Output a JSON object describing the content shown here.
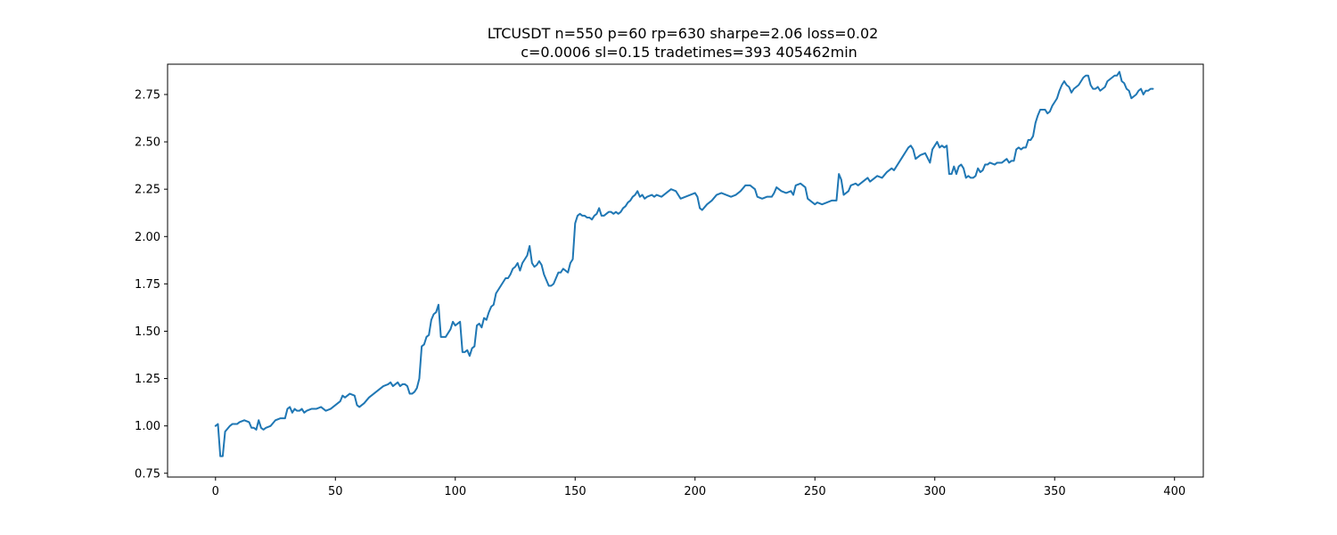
{
  "chart_data": {
    "type": "line",
    "title": "LTCUSDT n=550 p=60 rp=630 sharpe=2.06 loss=0.02",
    "subtitle": "c=0.0006 sl=0.15 tradetimes=393  405462min",
    "xlabel": "",
    "ylabel": "",
    "xlim": [
      -20,
      412
    ],
    "ylim": [
      0.73,
      2.91
    ],
    "xticks": [
      0,
      50,
      100,
      150,
      200,
      250,
      300,
      350,
      400
    ],
    "xtick_labels": [
      "0",
      "50",
      "100",
      "150",
      "200",
      "250",
      "300",
      "350",
      "400"
    ],
    "yticks": [
      0.75,
      1.0,
      1.25,
      1.5,
      1.75,
      2.0,
      2.25,
      2.5,
      2.75
    ],
    "ytick_labels": [
      "0.75",
      "1.00",
      "1.25",
      "1.50",
      "1.75",
      "2.00",
      "2.25",
      "2.50",
      "2.75"
    ],
    "grid": false,
    "line_color": "#1f77b4",
    "series": [
      {
        "values": [
          [
            0,
            1.0
          ],
          [
            1,
            1.01
          ],
          [
            2,
            0.84
          ],
          [
            3,
            0.84
          ],
          [
            4,
            0.97
          ],
          [
            6,
            1.0
          ],
          [
            7,
            1.01
          ],
          [
            9,
            1.01
          ],
          [
            10,
            1.02
          ],
          [
            12,
            1.03
          ],
          [
            14,
            1.02
          ],
          [
            15,
            0.99
          ],
          [
            16,
            0.99
          ],
          [
            17,
            0.98
          ],
          [
            18,
            1.03
          ],
          [
            19,
            0.99
          ],
          [
            20,
            0.98
          ],
          [
            21,
            0.99
          ],
          [
            23,
            1.0
          ],
          [
            25,
            1.03
          ],
          [
            27,
            1.04
          ],
          [
            29,
            1.04
          ],
          [
            30,
            1.09
          ],
          [
            31,
            1.1
          ],
          [
            32,
            1.07
          ],
          [
            33,
            1.09
          ],
          [
            34,
            1.08
          ],
          [
            35,
            1.08
          ],
          [
            36,
            1.09
          ],
          [
            37,
            1.07
          ],
          [
            38,
            1.08
          ],
          [
            40,
            1.09
          ],
          [
            42,
            1.09
          ],
          [
            44,
            1.1
          ],
          [
            46,
            1.08
          ],
          [
            48,
            1.09
          ],
          [
            50,
            1.11
          ],
          [
            52,
            1.13
          ],
          [
            53,
            1.16
          ],
          [
            54,
            1.15
          ],
          [
            56,
            1.17
          ],
          [
            58,
            1.16
          ],
          [
            59,
            1.11
          ],
          [
            60,
            1.1
          ],
          [
            62,
            1.12
          ],
          [
            64,
            1.15
          ],
          [
            66,
            1.17
          ],
          [
            68,
            1.19
          ],
          [
            70,
            1.21
          ],
          [
            72,
            1.22
          ],
          [
            73,
            1.23
          ],
          [
            74,
            1.21
          ],
          [
            75,
            1.22
          ],
          [
            76,
            1.23
          ],
          [
            77,
            1.21
          ],
          [
            78,
            1.22
          ],
          [
            79,
            1.22
          ],
          [
            80,
            1.21
          ],
          [
            81,
            1.17
          ],
          [
            82,
            1.17
          ],
          [
            83,
            1.18
          ],
          [
            84,
            1.2
          ],
          [
            85,
            1.25
          ],
          [
            86,
            1.42
          ],
          [
            87,
            1.43
          ],
          [
            88,
            1.47
          ],
          [
            89,
            1.48
          ],
          [
            90,
            1.56
          ],
          [
            91,
            1.59
          ],
          [
            92,
            1.6
          ],
          [
            93,
            1.64
          ],
          [
            94,
            1.47
          ],
          [
            95,
            1.47
          ],
          [
            96,
            1.47
          ],
          [
            97,
            1.49
          ],
          [
            98,
            1.51
          ],
          [
            99,
            1.55
          ],
          [
            100,
            1.53
          ],
          [
            101,
            1.54
          ],
          [
            102,
            1.55
          ],
          [
            103,
            1.39
          ],
          [
            104,
            1.39
          ],
          [
            105,
            1.4
          ],
          [
            106,
            1.37
          ],
          [
            107,
            1.41
          ],
          [
            108,
            1.42
          ],
          [
            109,
            1.53
          ],
          [
            110,
            1.54
          ],
          [
            111,
            1.52
          ],
          [
            112,
            1.57
          ],
          [
            113,
            1.56
          ],
          [
            114,
            1.6
          ],
          [
            115,
            1.63
          ],
          [
            116,
            1.64
          ],
          [
            117,
            1.7
          ],
          [
            118,
            1.72
          ],
          [
            119,
            1.74
          ],
          [
            120,
            1.76
          ],
          [
            121,
            1.78
          ],
          [
            122,
            1.78
          ],
          [
            123,
            1.8
          ],
          [
            124,
            1.83
          ],
          [
            125,
            1.84
          ],
          [
            126,
            1.86
          ],
          [
            127,
            1.82
          ],
          [
            128,
            1.86
          ],
          [
            129,
            1.88
          ],
          [
            130,
            1.9
          ],
          [
            131,
            1.95
          ],
          [
            132,
            1.86
          ],
          [
            133,
            1.84
          ],
          [
            134,
            1.85
          ],
          [
            135,
            1.87
          ],
          [
            136,
            1.85
          ],
          [
            137,
            1.8
          ],
          [
            138,
            1.77
          ],
          [
            139,
            1.74
          ],
          [
            140,
            1.74
          ],
          [
            141,
            1.75
          ],
          [
            142,
            1.78
          ],
          [
            143,
            1.81
          ],
          [
            144,
            1.81
          ],
          [
            145,
            1.83
          ],
          [
            146,
            1.82
          ],
          [
            147,
            1.81
          ],
          [
            148,
            1.86
          ],
          [
            149,
            1.88
          ],
          [
            150,
            2.07
          ],
          [
            151,
            2.11
          ],
          [
            152,
            2.12
          ],
          [
            153,
            2.11
          ],
          [
            154,
            2.11
          ],
          [
            155,
            2.1
          ],
          [
            156,
            2.1
          ],
          [
            157,
            2.09
          ],
          [
            158,
            2.11
          ],
          [
            159,
            2.12
          ],
          [
            160,
            2.15
          ],
          [
            161,
            2.11
          ],
          [
            162,
            2.11
          ],
          [
            163,
            2.12
          ],
          [
            164,
            2.13
          ],
          [
            165,
            2.13
          ],
          [
            166,
            2.12
          ],
          [
            167,
            2.13
          ],
          [
            168,
            2.12
          ],
          [
            169,
            2.13
          ],
          [
            170,
            2.15
          ],
          [
            171,
            2.16
          ],
          [
            172,
            2.18
          ],
          [
            173,
            2.19
          ],
          [
            174,
            2.21
          ],
          [
            175,
            2.22
          ],
          [
            176,
            2.24
          ],
          [
            177,
            2.21
          ],
          [
            178,
            2.22
          ],
          [
            179,
            2.2
          ],
          [
            180,
            2.21
          ],
          [
            182,
            2.22
          ],
          [
            183,
            2.21
          ],
          [
            184,
            2.22
          ],
          [
            186,
            2.21
          ],
          [
            188,
            2.23
          ],
          [
            190,
            2.25
          ],
          [
            192,
            2.24
          ],
          [
            193,
            2.22
          ],
          [
            194,
            2.2
          ],
          [
            196,
            2.21
          ],
          [
            198,
            2.22
          ],
          [
            200,
            2.23
          ],
          [
            201,
            2.21
          ],
          [
            202,
            2.15
          ],
          [
            203,
            2.14
          ],
          [
            205,
            2.17
          ],
          [
            207,
            2.19
          ],
          [
            209,
            2.22
          ],
          [
            211,
            2.23
          ],
          [
            213,
            2.22
          ],
          [
            215,
            2.21
          ],
          [
            217,
            2.22
          ],
          [
            219,
            2.24
          ],
          [
            221,
            2.27
          ],
          [
            223,
            2.27
          ],
          [
            225,
            2.25
          ],
          [
            226,
            2.21
          ],
          [
            228,
            2.2
          ],
          [
            230,
            2.21
          ],
          [
            232,
            2.21
          ],
          [
            233,
            2.23
          ],
          [
            234,
            2.26
          ],
          [
            236,
            2.24
          ],
          [
            238,
            2.23
          ],
          [
            240,
            2.24
          ],
          [
            241,
            2.22
          ],
          [
            242,
            2.27
          ],
          [
            244,
            2.28
          ],
          [
            246,
            2.26
          ],
          [
            247,
            2.2
          ],
          [
            248,
            2.19
          ],
          [
            249,
            2.18
          ],
          [
            250,
            2.17
          ],
          [
            251,
            2.18
          ],
          [
            253,
            2.17
          ],
          [
            255,
            2.18
          ],
          [
            257,
            2.19
          ],
          [
            259,
            2.19
          ],
          [
            260,
            2.33
          ],
          [
            261,
            2.3
          ],
          [
            262,
            2.22
          ],
          [
            263,
            2.23
          ],
          [
            264,
            2.24
          ],
          [
            265,
            2.27
          ],
          [
            267,
            2.28
          ],
          [
            268,
            2.27
          ],
          [
            270,
            2.29
          ],
          [
            272,
            2.31
          ],
          [
            273,
            2.29
          ],
          [
            274,
            2.3
          ],
          [
            276,
            2.32
          ],
          [
            278,
            2.31
          ],
          [
            280,
            2.34
          ],
          [
            282,
            2.36
          ],
          [
            283,
            2.35
          ],
          [
            285,
            2.39
          ],
          [
            287,
            2.43
          ],
          [
            289,
            2.47
          ],
          [
            290,
            2.48
          ],
          [
            291,
            2.46
          ],
          [
            292,
            2.41
          ],
          [
            294,
            2.43
          ],
          [
            296,
            2.44
          ],
          [
            298,
            2.39
          ],
          [
            299,
            2.46
          ],
          [
            300,
            2.48
          ],
          [
            301,
            2.5
          ],
          [
            302,
            2.47
          ],
          [
            303,
            2.48
          ],
          [
            304,
            2.47
          ],
          [
            305,
            2.48
          ],
          [
            306,
            2.33
          ],
          [
            307,
            2.33
          ],
          [
            308,
            2.37
          ],
          [
            309,
            2.33
          ],
          [
            310,
            2.37
          ],
          [
            311,
            2.38
          ],
          [
            312,
            2.36
          ],
          [
            313,
            2.31
          ],
          [
            314,
            2.32
          ],
          [
            315,
            2.31
          ],
          [
            316,
            2.31
          ],
          [
            317,
            2.32
          ],
          [
            318,
            2.36
          ],
          [
            319,
            2.34
          ],
          [
            320,
            2.35
          ],
          [
            321,
            2.38
          ],
          [
            322,
            2.38
          ],
          [
            323,
            2.39
          ],
          [
            325,
            2.38
          ],
          [
            326,
            2.39
          ],
          [
            327,
            2.39
          ],
          [
            328,
            2.39
          ],
          [
            329,
            2.4
          ],
          [
            330,
            2.41
          ],
          [
            331,
            2.39
          ],
          [
            332,
            2.4
          ],
          [
            333,
            2.4
          ],
          [
            334,
            2.46
          ],
          [
            335,
            2.47
          ],
          [
            336,
            2.46
          ],
          [
            337,
            2.47
          ],
          [
            338,
            2.47
          ],
          [
            339,
            2.51
          ],
          [
            340,
            2.51
          ],
          [
            341,
            2.53
          ],
          [
            342,
            2.6
          ],
          [
            343,
            2.64
          ],
          [
            344,
            2.67
          ],
          [
            345,
            2.67
          ],
          [
            346,
            2.67
          ],
          [
            347,
            2.65
          ],
          [
            348,
            2.66
          ],
          [
            349,
            2.69
          ],
          [
            350,
            2.71
          ],
          [
            351,
            2.73
          ],
          [
            352,
            2.77
          ],
          [
            353,
            2.8
          ],
          [
            354,
            2.82
          ],
          [
            355,
            2.8
          ],
          [
            356,
            2.79
          ],
          [
            357,
            2.76
          ],
          [
            358,
            2.78
          ],
          [
            359,
            2.79
          ],
          [
            360,
            2.8
          ],
          [
            361,
            2.82
          ],
          [
            362,
            2.84
          ],
          [
            363,
            2.85
          ],
          [
            364,
            2.85
          ],
          [
            365,
            2.8
          ],
          [
            366,
            2.78
          ],
          [
            367,
            2.78
          ],
          [
            368,
            2.79
          ],
          [
            369,
            2.77
          ],
          [
            370,
            2.78
          ],
          [
            371,
            2.79
          ],
          [
            372,
            2.82
          ],
          [
            373,
            2.83
          ],
          [
            374,
            2.84
          ],
          [
            375,
            2.85
          ],
          [
            376,
            2.85
          ],
          [
            377,
            2.87
          ],
          [
            378,
            2.82
          ],
          [
            379,
            2.81
          ],
          [
            380,
            2.78
          ],
          [
            381,
            2.77
          ],
          [
            382,
            2.73
          ],
          [
            383,
            2.74
          ],
          [
            384,
            2.75
          ],
          [
            385,
            2.77
          ],
          [
            386,
            2.78
          ],
          [
            387,
            2.75
          ],
          [
            388,
            2.77
          ],
          [
            389,
            2.77
          ],
          [
            390,
            2.78
          ],
          [
            391,
            2.78
          ]
        ]
      }
    ]
  }
}
